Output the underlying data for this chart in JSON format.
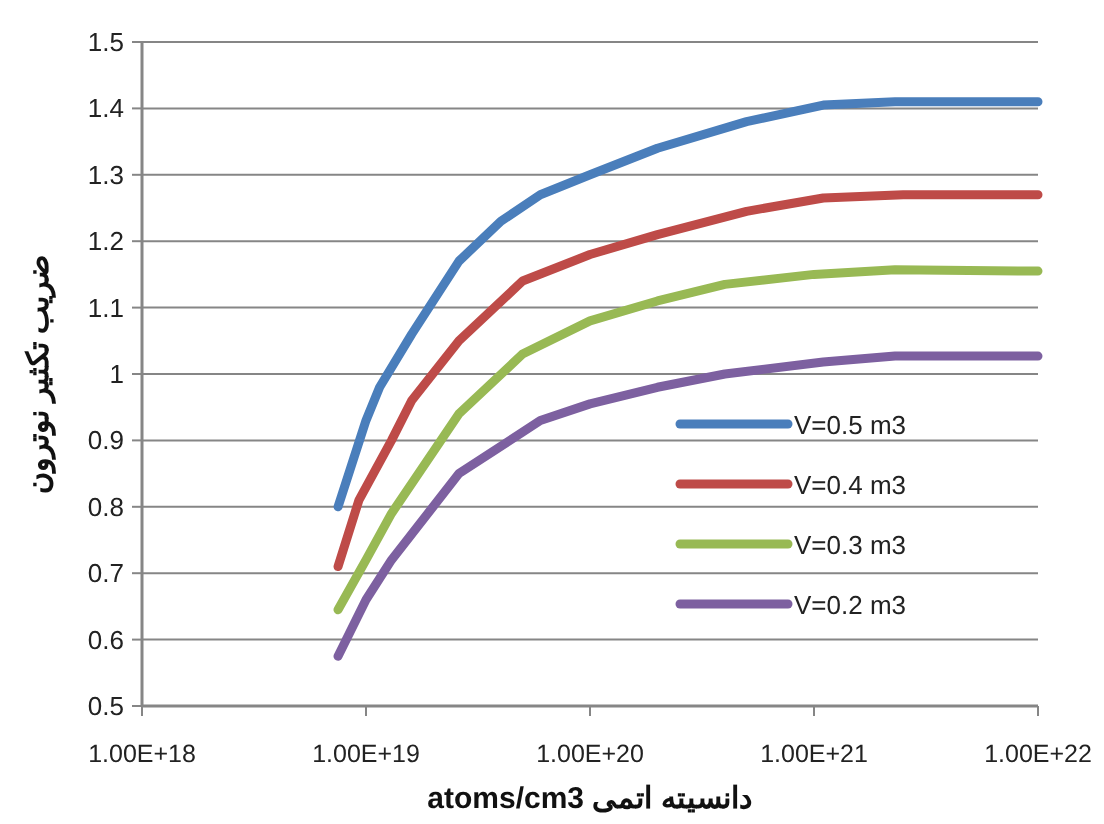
{
  "chart_data": {
    "type": "line",
    "xlabel": "دانسیته اتمی atoms/cm3",
    "ylabel": "ضریب تکثیر نوترون",
    "log": "x",
    "xlim": [
      1e+18,
      1e+22
    ],
    "xticks": [
      {
        "value": 1e+18,
        "label": "1.00E+18"
      },
      {
        "value": 1e+19,
        "label": "1.00E+19"
      },
      {
        "value": 1e+20,
        "label": "1.00E+20"
      },
      {
        "value": 1e+21,
        "label": "1.00E+21"
      },
      {
        "value": 1e+22,
        "label": "1.00E+22"
      }
    ],
    "ylim": [
      0.5,
      1.5
    ],
    "yticks": [
      0.5,
      0.6,
      0.7,
      0.8,
      0.9,
      1,
      1.1,
      1.2,
      1.3,
      1.4,
      1.5
    ],
    "grid": "y",
    "legend": "right",
    "marker": "none",
    "line_style": "solid",
    "series": [
      {
        "name": "V=0.5 m3",
        "color": "#4a7ebb",
        "x": [
          7.5e+18,
          1e+19,
          1.15e+19,
          1.6e+19,
          2.6e+19,
          4e+19,
          6e+19,
          1e+20,
          2e+20,
          5e+20,
          1.1e+21,
          2.3e+21,
          1e+22
        ],
        "values": [
          0.8,
          0.93,
          0.98,
          1.06,
          1.17,
          1.23,
          1.27,
          1.3,
          1.34,
          1.38,
          1.405,
          1.41,
          1.41
        ]
      },
      {
        "name": "V=0.4 m3",
        "color": "#be4b48",
        "x": [
          7.5e+18,
          9.3e+18,
          1.3e+19,
          1.6e+19,
          2.6e+19,
          5e+19,
          1e+20,
          2e+20,
          5e+20,
          1.1e+21,
          2.5e+21,
          1e+22
        ],
        "values": [
          0.71,
          0.81,
          0.9,
          0.96,
          1.05,
          1.14,
          1.18,
          1.21,
          1.245,
          1.265,
          1.27,
          1.27
        ]
      },
      {
        "name": "V=0.3 m3",
        "color": "#98b954",
        "x": [
          7.5e+18,
          1e+19,
          1.3e+19,
          2.6e+19,
          5e+19,
          1e+20,
          2e+20,
          4e+20,
          1e+21,
          2.3e+21,
          1e+22
        ],
        "values": [
          0.645,
          0.72,
          0.79,
          0.94,
          1.03,
          1.08,
          1.11,
          1.135,
          1.15,
          1.157,
          1.155
        ]
      },
      {
        "name": "V=0.2 m3",
        "color": "#7d60a0",
        "x": [
          7.5e+18,
          1e+19,
          1.3e+19,
          2.6e+19,
          6e+19,
          1e+20,
          2e+20,
          4e+20,
          1.1e+21,
          2.3e+21,
          1e+22
        ],
        "values": [
          0.575,
          0.66,
          0.72,
          0.85,
          0.93,
          0.955,
          0.98,
          1.0,
          1.018,
          1.027,
          1.027
        ]
      }
    ]
  }
}
